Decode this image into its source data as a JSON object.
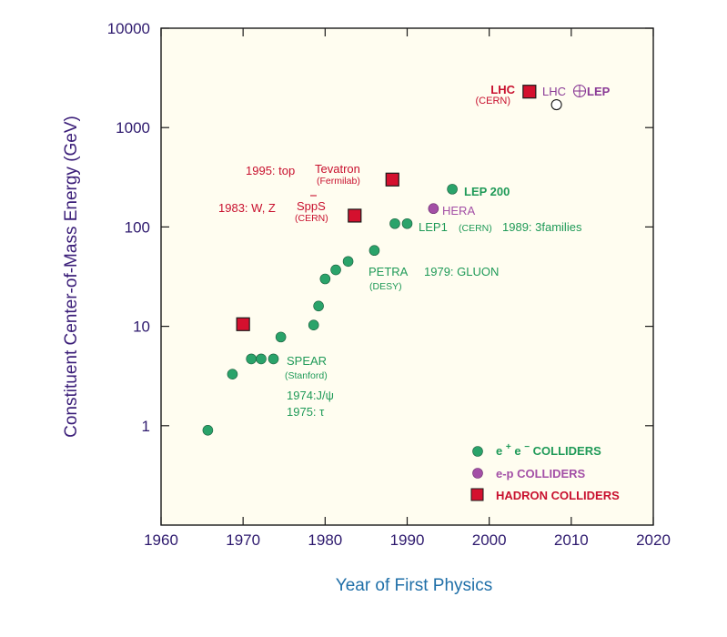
{
  "chart_data": {
    "type": "scatter",
    "title": "",
    "xlabel": "Year of First Physics",
    "ylabel": "Constituent Center-of-Mass Energy (GeV)",
    "xlim": [
      1960,
      2020
    ],
    "ylim": [
      0.1,
      10000
    ],
    "y_scale": "log",
    "x_ticks": [
      "1960",
      "1970",
      "1980",
      "1990",
      "2000",
      "2010",
      "2020"
    ],
    "y_ticks": [
      "1",
      "10",
      "100",
      "1000",
      "10000"
    ],
    "y_tick_values": [
      1,
      10,
      100,
      1000,
      10000
    ],
    "grid": false,
    "legend_position": "bottom-right",
    "colors": {
      "ee": "#2aa36a",
      "ep": "#a34fa6",
      "hadron": "#d4102e",
      "future": "#ffffff",
      "plot_bg": "#fffdf0"
    },
    "series": [
      {
        "name": "e+e- COLLIDERS",
        "marker": "circle",
        "points": [
          [
            1965.7,
            0.9
          ],
          [
            1968.7,
            3.3
          ],
          [
            1971.0,
            4.7
          ],
          [
            1972.2,
            4.7
          ],
          [
            1973.7,
            4.7
          ],
          [
            1974.6,
            7.8
          ],
          [
            1978.6,
            10.3
          ],
          [
            1979.2,
            16
          ],
          [
            1980.0,
            30
          ],
          [
            1981.3,
            37
          ],
          [
            1982.8,
            45
          ],
          [
            1986.0,
            58
          ],
          [
            1988.5,
            108
          ],
          [
            1990.0,
            108
          ],
          [
            1995.5,
            240
          ]
        ]
      },
      {
        "name": "e-p COLLIDERS",
        "marker": "circle",
        "points": [
          [
            1993.2,
            153
          ]
        ]
      },
      {
        "name": "HADRON COLLIDERS",
        "marker": "square",
        "points": [
          [
            1970.0,
            10.5
          ],
          [
            1983.6,
            130
          ],
          [
            1988.2,
            300
          ],
          [
            2004.9,
            2300
          ]
        ]
      },
      {
        "name": "LHC ⊕ LEP",
        "marker": "open-circle",
        "points": [
          [
            2008.2,
            1700
          ]
        ]
      }
    ],
    "legend": {
      "ee_prefix": "e",
      "ee_plus": "+",
      "ee_e": "e",
      "ee_minus": "−",
      "ee_suffix": "COLLIDERS",
      "ep": "e-p COLLIDERS",
      "hadron": "HADRON COLLIDERS"
    },
    "annotations": {
      "lhc": "LHC",
      "lhc_cern": "(CERN)",
      "lhc_lep_a": "LHC",
      "lhc_lep_b": "LEP",
      "top": "1995: top",
      "tevatron": "Tevatron",
      "fermilab": "(Fermilab)",
      "lep200": "LEP 200",
      "wz": "1983: W, Z",
      "sppbar": "SppS",
      "sppbar_cern": "(CERN)",
      "hera": "HERA",
      "lep1": "LEP1",
      "lep1_cern": "(CERN)",
      "families": "1989: 3families",
      "petra": "PETRA",
      "desy": "(DESY)",
      "gluon": "1979: GLUON",
      "spear": "SPEAR",
      "stanford": "(Stanford)",
      "jpsi": "1974:J/ψ",
      "tau": "1975: τ"
    }
  }
}
